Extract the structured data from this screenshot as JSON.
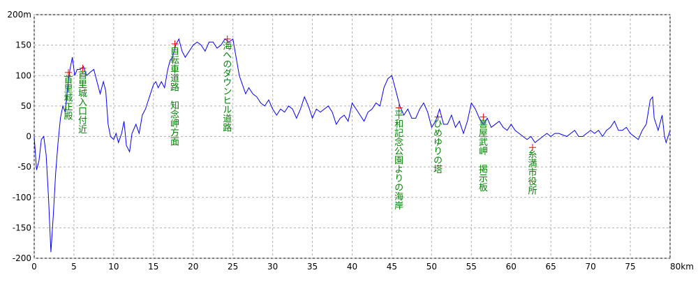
{
  "chart_data": {
    "type": "line",
    "xlim": [
      0,
      80
    ],
    "ylim": [
      -200,
      200
    ],
    "xticks": [
      0,
      5,
      10,
      15,
      20,
      25,
      30,
      35,
      40,
      45,
      50,
      55,
      60,
      65,
      70,
      75,
      {
        "value": 80,
        "label": "80km"
      }
    ],
    "yticks": [
      {
        "value": 200,
        "label": "200m"
      },
      150,
      100,
      50,
      0,
      -50,
      -100,
      -150,
      -200
    ],
    "grid": true,
    "series": [
      {
        "color": "#0000ff",
        "x": [
          0,
          0.3,
          0.6,
          0.9,
          1.2,
          1.5,
          1.8,
          2.1,
          2.4,
          2.7,
          3.0,
          3.3,
          3.6,
          3.9,
          4.2,
          4.5,
          4.8,
          5.1,
          5.4,
          5.8,
          6.2,
          6.6,
          7.0,
          7.5,
          7.9,
          8.3,
          8.7,
          9.0,
          9.3,
          9.6,
          10.0,
          10.3,
          10.6,
          11.0,
          11.3,
          11.6,
          12.0,
          12.3,
          12.8,
          13.2,
          13.6,
          14.0,
          14.5,
          15.0,
          15.3,
          15.6,
          16.0,
          16.4,
          16.8,
          17.1,
          17.4,
          17.8,
          18.2,
          18.6,
          19.0,
          19.5,
          20.0,
          20.5,
          21.0,
          21.5,
          22.0,
          22.5,
          23.0,
          23.5,
          24.0,
          24.5,
          25.0,
          25.4,
          25.8,
          26.2,
          26.6,
          27.0,
          27.5,
          28.0,
          28.5,
          29.0,
          29.5,
          30.0,
          30.5,
          31.0,
          31.5,
          32.0,
          32.5,
          33.0,
          33.5,
          34.0,
          34.5,
          35.0,
          35.5,
          36.0,
          36.5,
          37.0,
          37.5,
          38.0,
          38.5,
          39.0,
          39.5,
          40.0,
          40.5,
          41.0,
          41.5,
          42.0,
          42.5,
          43.0,
          43.5,
          44.0,
          44.5,
          45.0,
          45.5,
          46.0,
          46.5,
          47.0,
          47.5,
          48.0,
          48.5,
          49.0,
          49.5,
          50.0,
          50.5,
          51.0,
          51.5,
          52.0,
          52.5,
          53.0,
          53.5,
          54.0,
          54.5,
          55.0,
          55.5,
          56.0,
          56.5,
          57.0,
          57.5,
          58.0,
          58.5,
          59.0,
          59.5,
          60.0,
          60.5,
          61.0,
          61.5,
          62.0,
          62.5,
          63.0,
          63.5,
          64.0,
          64.5,
          65.0,
          65.5,
          66.0,
          67.0,
          67.5,
          68.0,
          68.5,
          69.0,
          69.5,
          70.0,
          70.5,
          71.0,
          71.5,
          72.0,
          72.5,
          73.0,
          73.5,
          74.0,
          74.5,
          75.0,
          75.5,
          76.0,
          76.5,
          77.0,
          77.5,
          77.8,
          78.0,
          78.5,
          79.0,
          79.3,
          79.5,
          80.0
        ],
        "values": [
          0,
          -55,
          -40,
          -5,
          0,
          -30,
          -100,
          -190,
          -130,
          -60,
          -10,
          30,
          50,
          40,
          80,
          110,
          130,
          100,
          110,
          110,
          115,
          100,
          105,
          110,
          90,
          70,
          90,
          75,
          20,
          0,
          -5,
          5,
          -10,
          5,
          25,
          -15,
          -25,
          5,
          20,
          5,
          35,
          45,
          65,
          85,
          90,
          80,
          90,
          80,
          110,
          125,
          130,
          150,
          160,
          140,
          130,
          140,
          150,
          155,
          150,
          140,
          155,
          155,
          145,
          150,
          160,
          155,
          160,
          130,
          100,
          85,
          70,
          80,
          70,
          65,
          55,
          50,
          60,
          45,
          35,
          45,
          40,
          50,
          45,
          30,
          45,
          65,
          50,
          30,
          45,
          40,
          45,
          50,
          40,
          20,
          30,
          35,
          25,
          55,
          45,
          35,
          25,
          40,
          45,
          55,
          50,
          80,
          95,
          100,
          75,
          50,
          35,
          45,
          30,
          30,
          45,
          55,
          40,
          15,
          25,
          45,
          20,
          20,
          35,
          15,
          25,
          5,
          25,
          55,
          45,
          30,
          20,
          30,
          15,
          20,
          25,
          15,
          10,
          20,
          10,
          5,
          0,
          -5,
          0,
          -10,
          -5,
          0,
          5,
          0,
          5,
          5,
          0,
          5,
          10,
          0,
          0,
          5,
          10,
          5,
          10,
          0,
          10,
          15,
          25,
          10,
          10,
          15,
          5,
          0,
          -5,
          10,
          20,
          60,
          65,
          30,
          10,
          35,
          0,
          -10,
          10
        ]
      }
    ],
    "annotations": [
      {
        "x": 4.3,
        "y": 105,
        "label": "首里城正殿"
      },
      {
        "x": 6.1,
        "y": 112,
        "label": "首里城入口付近"
      },
      {
        "x": 17.7,
        "y": 152,
        "label": "自転車道路　知念岬方面"
      },
      {
        "x": 24.3,
        "y": 160,
        "label": "海へのダウンヒル道路"
      },
      {
        "x": 45.9,
        "y": 47,
        "label": "平和記念公園よりの海岸"
      },
      {
        "x": 50.8,
        "y": 32,
        "label": "ひめゆりの塔"
      },
      {
        "x": 56.5,
        "y": 32,
        "label": "喜屋武岬　掲示板"
      },
      {
        "x": 62.7,
        "y": -18,
        "label": "糸満市役所"
      }
    ]
  }
}
